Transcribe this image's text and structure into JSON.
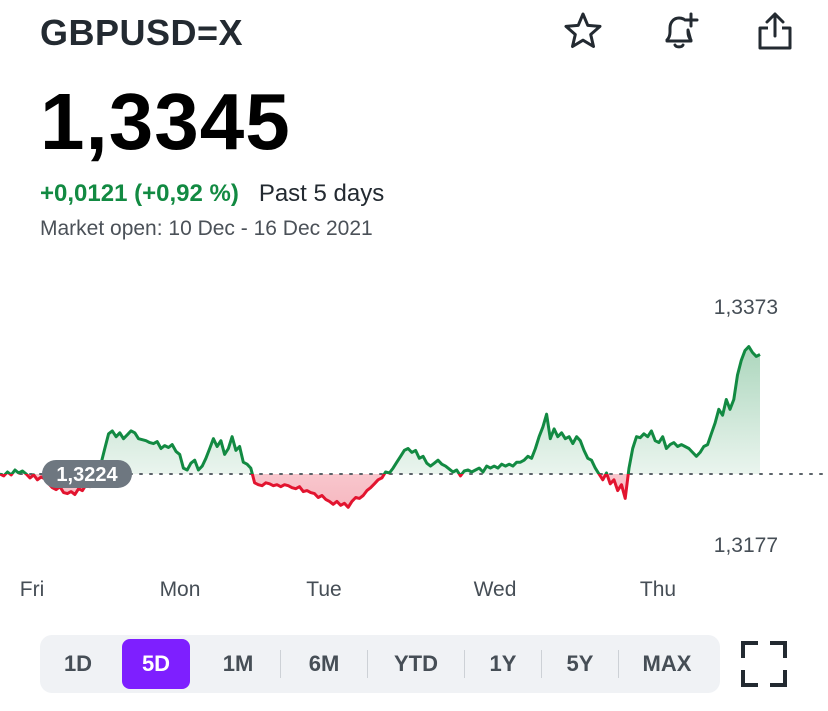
{
  "header": {
    "ticker": "GBPUSD=X",
    "icons": [
      "star-icon",
      "bell-plus-icon",
      "share-icon"
    ]
  },
  "quote": {
    "price": "1,3345",
    "change": "+0,0121 (+0,92 %)",
    "period": "Past 5 days",
    "market_open": "Market open: 10 Dec - 16 Dec 2021"
  },
  "chart_data": {
    "type": "line",
    "title": "",
    "xlabel": "",
    "ylabel": "",
    "x_tick_labels": [
      "Fri",
      "Mon",
      "Tue",
      "Wed",
      "Thu"
    ],
    "previous_close": 1.3224,
    "previous_close_label": "1,3224",
    "high_label": "1,3373",
    "low_label": "1,3177",
    "ylim": [
      1.3177,
      1.3373
    ],
    "colors": {
      "up": "#128a42",
      "down": "#e2142f",
      "baseline": "#5b636a"
    },
    "series": [
      {
        "values": [
          1.3224,
          1.3222,
          1.3226,
          1.3223,
          1.3228,
          1.3225,
          1.3227,
          1.3224,
          1.322,
          1.3223,
          1.3218,
          1.3221,
          1.3219,
          1.3214,
          1.321,
          1.3208,
          1.3211,
          1.3205,
          1.3204,
          1.3206,
          1.3203,
          1.3209,
          1.3207,
          1.3213,
          1.3211,
          1.3222,
          1.3226,
          1.3235,
          1.325,
          1.3265,
          1.3268,
          1.3262,
          1.3266,
          1.326,
          1.3264,
          1.3268,
          1.3266,
          1.326,
          1.3259,
          1.3258,
          1.3256,
          1.3255,
          1.3257,
          1.325,
          1.3253,
          1.3251,
          1.3254,
          1.3247,
          1.3244,
          1.323,
          1.3228,
          1.3235,
          1.3238,
          1.3228,
          1.3232,
          1.324,
          1.325,
          1.326,
          1.3252,
          1.3258,
          1.3244,
          1.325,
          1.3262,
          1.3248,
          1.3252,
          1.3236,
          1.3234,
          1.323,
          1.3215,
          1.3213,
          1.3212,
          1.3215,
          1.3214,
          1.3212,
          1.3213,
          1.3211,
          1.3213,
          1.3212,
          1.321,
          1.3209,
          1.3211,
          1.3206,
          1.3207,
          1.3205,
          1.3204,
          1.32,
          1.3202,
          1.3198,
          1.3196,
          1.3193,
          1.3196,
          1.3192,
          1.3194,
          1.319,
          1.3196,
          1.32,
          1.3199,
          1.3202,
          1.3207,
          1.321,
          1.3214,
          1.3218,
          1.322,
          1.3226,
          1.3225,
          1.323,
          1.3236,
          1.3242,
          1.3248,
          1.325,
          1.3246,
          1.3248,
          1.324,
          1.3242,
          1.3235,
          1.3232,
          1.3235,
          1.3238,
          1.3234,
          1.3232,
          1.3229,
          1.3226,
          1.3228,
          1.3222,
          1.3227,
          1.3228,
          1.3226,
          1.3228,
          1.323,
          1.3226,
          1.3232,
          1.323,
          1.3232,
          1.323,
          1.3234,
          1.3232,
          1.3234,
          1.3232,
          1.3236,
          1.3236,
          1.3238,
          1.3242,
          1.324,
          1.325,
          1.3262,
          1.3272,
          1.3285,
          1.326,
          1.327,
          1.3262,
          1.3266,
          1.326,
          1.3262,
          1.3255,
          1.3262,
          1.3258,
          1.3248,
          1.324,
          1.3238,
          1.323,
          1.3224,
          1.3218,
          1.3225,
          1.3214,
          1.3218,
          1.3207,
          1.3213,
          1.3199,
          1.323,
          1.325,
          1.3262,
          1.3261,
          1.3265,
          1.3262,
          1.3268,
          1.3258,
          1.3256,
          1.3262,
          1.325,
          1.3254,
          1.3256,
          1.3252,
          1.3254,
          1.3252,
          1.325,
          1.3246,
          1.3242,
          1.3246,
          1.3252,
          1.3254,
          1.3265,
          1.3276,
          1.329,
          1.3284,
          1.33,
          1.329,
          1.33,
          1.3325,
          1.334,
          1.335,
          1.3354,
          1.3348,
          1.3344,
          1.3346
        ]
      }
    ]
  },
  "range_selector": {
    "options": [
      "1D",
      "5D",
      "1M",
      "6M",
      "YTD",
      "1Y",
      "5Y",
      "MAX"
    ],
    "selected": "5D"
  },
  "fullscreen_icon": "fullscreen-icon"
}
